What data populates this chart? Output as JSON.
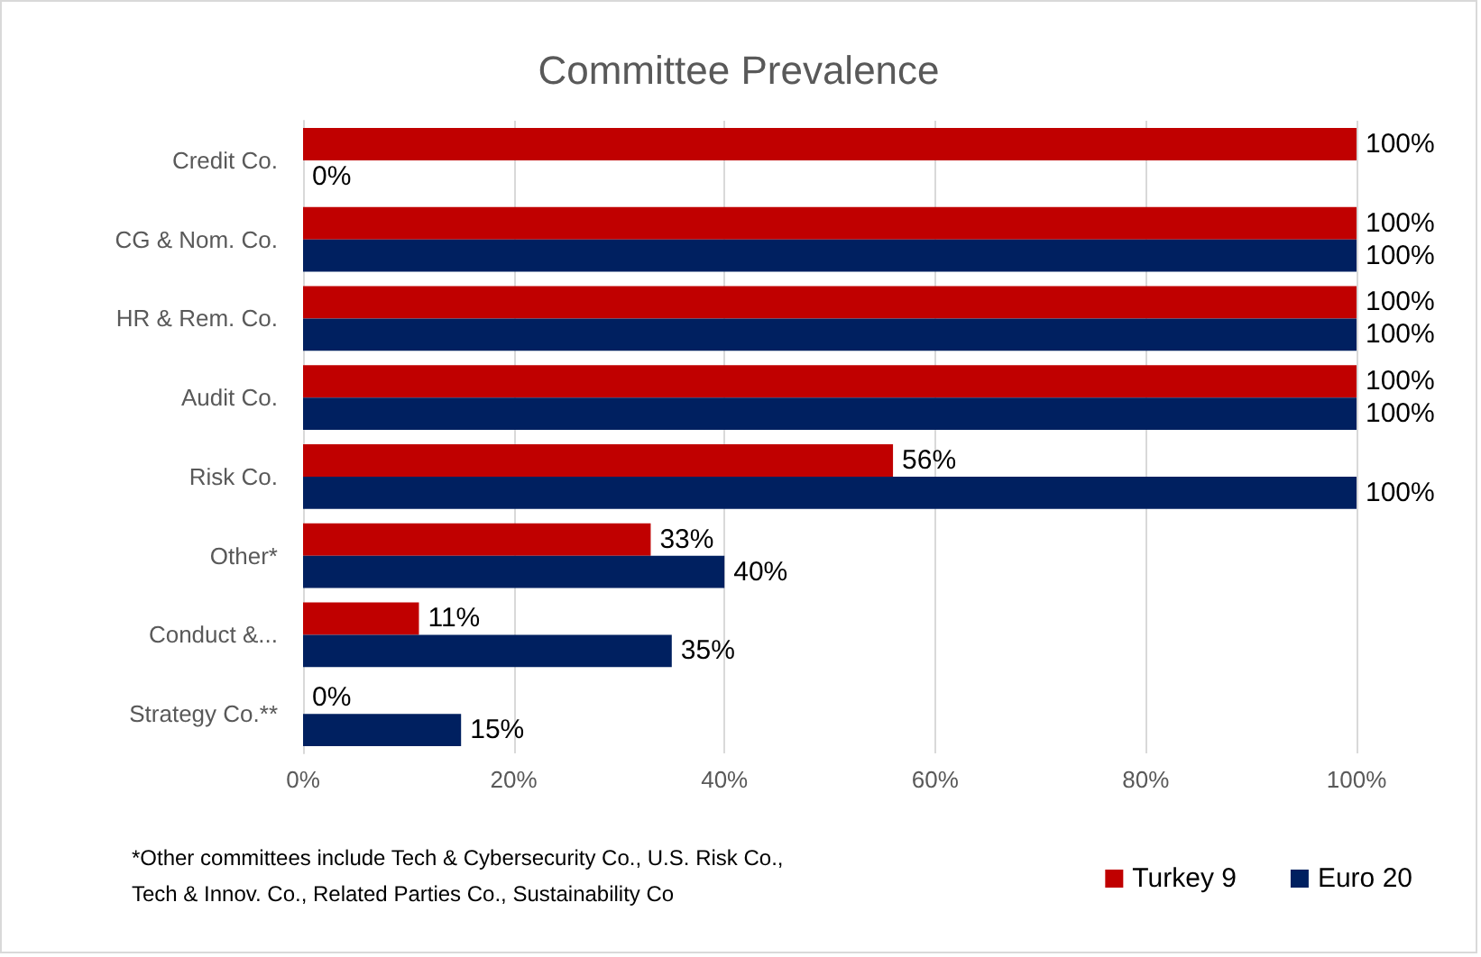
{
  "chart_data": {
    "type": "bar",
    "orientation": "horizontal",
    "title": "Committee Prevalence",
    "categories": [
      "Credit Co.",
      "CG & Nom. Co.",
      "HR & Rem. Co.",
      "Audit Co.",
      "Risk Co.",
      "Other*",
      "Conduct &...",
      "Strategy Co.**"
    ],
    "series": [
      {
        "name": "Turkey 9",
        "color": "#c00000",
        "values": [
          100,
          100,
          100,
          100,
          56,
          33,
          11,
          0
        ],
        "value_labels": [
          "100%",
          "100%",
          "100%",
          "100%",
          "56%",
          "33%",
          "11%",
          "0%"
        ]
      },
      {
        "name": "Euro 20",
        "color": "#002060",
        "values": [
          0,
          100,
          100,
          100,
          100,
          40,
          35,
          15
        ],
        "value_labels": [
          "0%",
          "100%",
          "100%",
          "100%",
          "100%",
          "40%",
          "35%",
          "15%"
        ]
      }
    ],
    "xlim": [
      0,
      100
    ],
    "xticks": [
      {
        "value": 0,
        "label": "0%"
      },
      {
        "value": 20,
        "label": "20%"
      },
      {
        "value": 40,
        "label": "40%"
      },
      {
        "value": 60,
        "label": "60%"
      },
      {
        "value": 80,
        "label": "80%"
      },
      {
        "value": 100,
        "label": "100%"
      }
    ],
    "grid": "x",
    "legend": "bottom right",
    "annotations": [
      "*Other committees include Tech & Cybersecurity Co., U.S. Risk Co., Tech & Innov. Co., Related Parties Co., Sustainability Co"
    ]
  }
}
